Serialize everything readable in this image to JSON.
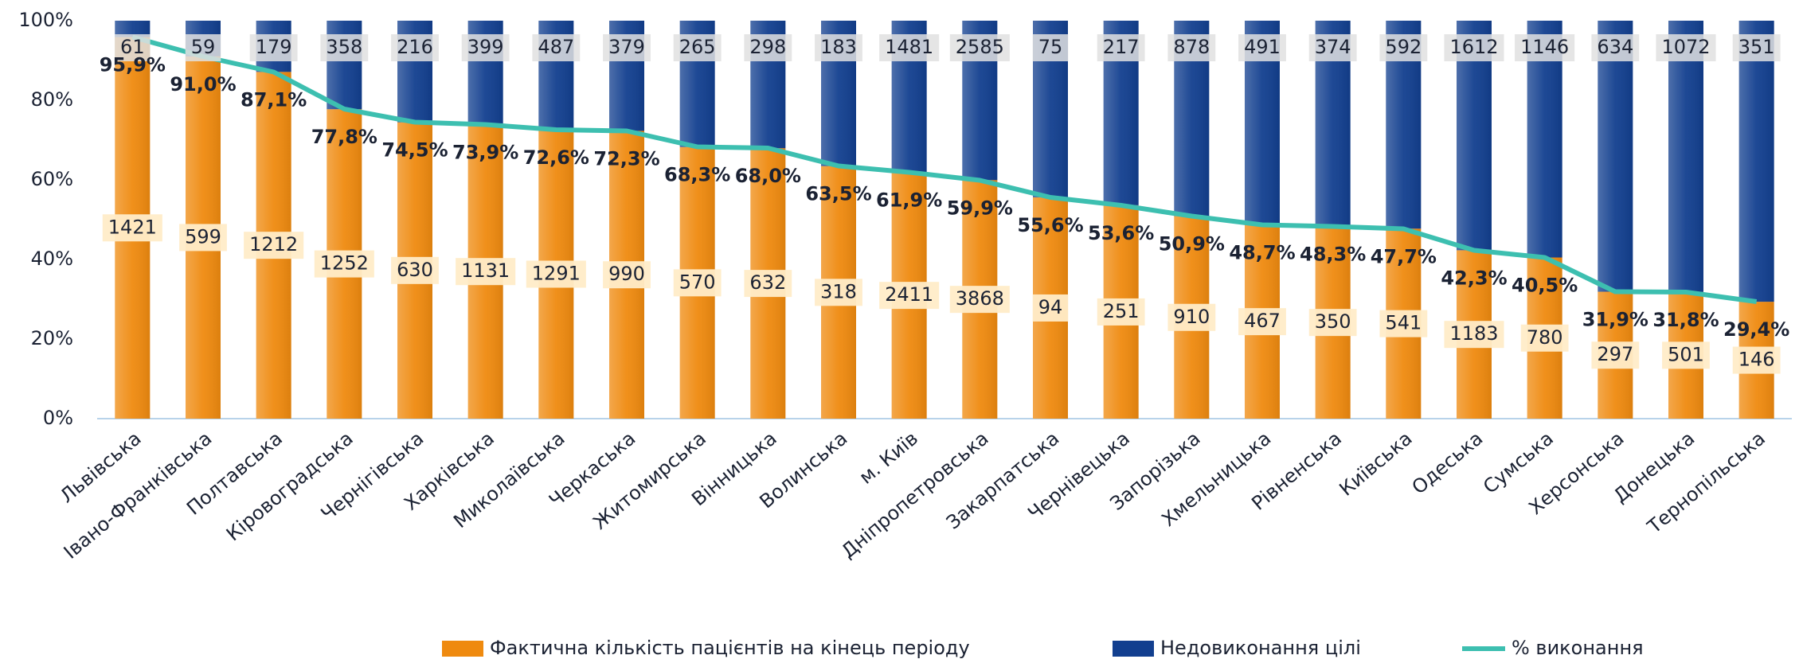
{
  "chart_data": {
    "type": "bar",
    "stacked": "percent",
    "categories": [
      "Львівська",
      "Івано-Франківська",
      "Полтавська",
      "Кіровоградська",
      "Чернігівська",
      "Харківська",
      "Миколаївська",
      "Черкаська",
      "Житомирська",
      "Вінницька",
      "Волинська",
      "м. Київ",
      "Дніпропетровська",
      "Закарпатська",
      "Чернівецька",
      "Запорізька",
      "Хмельницька",
      "Рівненська",
      "Київська",
      "Одеська",
      "Сумська",
      "Херсонська",
      "Донецька",
      "Тернопільська"
    ],
    "series": [
      {
        "name": "Фактична кількість пацієнтів на кінець періоду",
        "type": "bar",
        "color": "#ef8a0f",
        "values": [
          1421,
          599,
          1212,
          1252,
          630,
          1131,
          1291,
          990,
          570,
          632,
          318,
          2411,
          3868,
          94,
          251,
          910,
          467,
          350,
          541,
          1183,
          780,
          297,
          501,
          146
        ]
      },
      {
        "name": "Недовиконання цілі",
        "type": "bar",
        "color": "#123f8f",
        "values": [
          61,
          59,
          179,
          358,
          216,
          399,
          487,
          379,
          265,
          298,
          183,
          1481,
          2585,
          75,
          217,
          878,
          491,
          374,
          592,
          1612,
          1146,
          634,
          1072,
          351
        ]
      },
      {
        "name": "% виконання",
        "type": "line",
        "color": "#3dbfb0",
        "values": [
          95.9,
          91.0,
          87.1,
          77.8,
          74.5,
          73.9,
          72.6,
          72.3,
          68.3,
          68.0,
          63.5,
          61.9,
          59.9,
          55.6,
          53.6,
          50.9,
          48.7,
          48.3,
          47.7,
          42.3,
          40.5,
          31.9,
          31.8,
          29.4
        ],
        "value_labels": [
          "95,9%",
          "91,0%",
          "87,1%",
          "77,8%",
          "74,5%",
          "73,9%",
          "72,6%",
          "72,3%",
          "68,3%",
          "68,0%",
          "63,5%",
          "61,9%",
          "59,9%",
          "55,6%",
          "53,6%",
          "50,9%",
          "48,7%",
          "48,3%",
          "47,7%",
          "42,3%",
          "40,5%",
          "31,9%",
          "31,8%",
          "29,4%"
        ]
      }
    ],
    "ylim": [
      0,
      100
    ],
    "yticks": [
      {
        "value": 0,
        "label": "0%"
      },
      {
        "value": 20,
        "label": "20%"
      },
      {
        "value": 40,
        "label": "40%"
      },
      {
        "value": 60,
        "label": "60%"
      },
      {
        "value": 80,
        "label": "80%"
      },
      {
        "value": 100,
        "label": "100%"
      }
    ],
    "legend": "bottom"
  }
}
